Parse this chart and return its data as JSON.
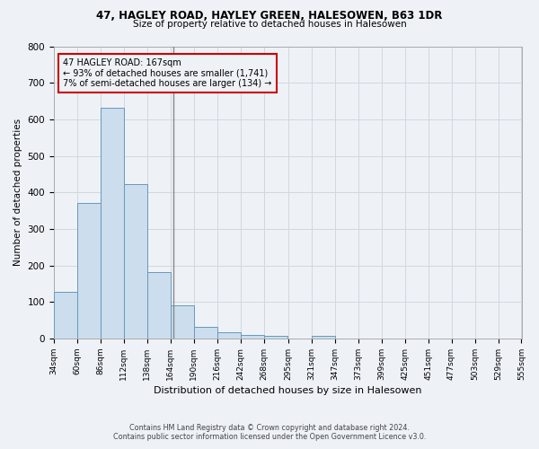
{
  "title1": "47, HAGLEY ROAD, HAYLEY GREEN, HALESOWEN, B63 1DR",
  "title2": "Size of property relative to detached houses in Halesowen",
  "xlabel": "Distribution of detached houses by size in Halesowen",
  "ylabel": "Number of detached properties",
  "footer1": "Contains HM Land Registry data © Crown copyright and database right 2024.",
  "footer2": "Contains public sector information licensed under the Open Government Licence v3.0.",
  "annotation_line1": "47 HAGLEY ROAD: 167sqm",
  "annotation_line2": "← 93% of detached houses are smaller (1,741)",
  "annotation_line3": "7% of semi-detached houses are larger (134) →",
  "bar_left_edges": [
    34,
    60,
    86,
    112,
    138,
    164,
    190,
    216,
    242,
    268,
    295,
    321,
    347,
    373,
    399,
    425,
    451,
    477,
    503,
    529
  ],
  "bar_heights": [
    127,
    370,
    632,
    422,
    183,
    90,
    32,
    16,
    10,
    7,
    0,
    8,
    0,
    0,
    0,
    0,
    0,
    0,
    0,
    0
  ],
  "bin_width": 26,
  "bar_color": "#ccdded",
  "bar_edge_color": "#6699bb",
  "vline_x": 167,
  "vline_color": "#888888",
  "annotation_box_color": "#cc0000",
  "tick_labels": [
    "34sqm",
    "60sqm",
    "86sqm",
    "112sqm",
    "138sqm",
    "164sqm",
    "190sqm",
    "216sqm",
    "242sqm",
    "268sqm",
    "295sqm",
    "321sqm",
    "347sqm",
    "373sqm",
    "399sqm",
    "425sqm",
    "451sqm",
    "477sqm",
    "503sqm",
    "529sqm",
    "555sqm"
  ],
  "ylim": [
    0,
    800
  ],
  "yticks": [
    0,
    100,
    200,
    300,
    400,
    500,
    600,
    700,
    800
  ],
  "grid_color": "#d0d8e0",
  "bg_color": "#eef2f7",
  "figsize": [
    6.0,
    5.0
  ],
  "dpi": 100
}
